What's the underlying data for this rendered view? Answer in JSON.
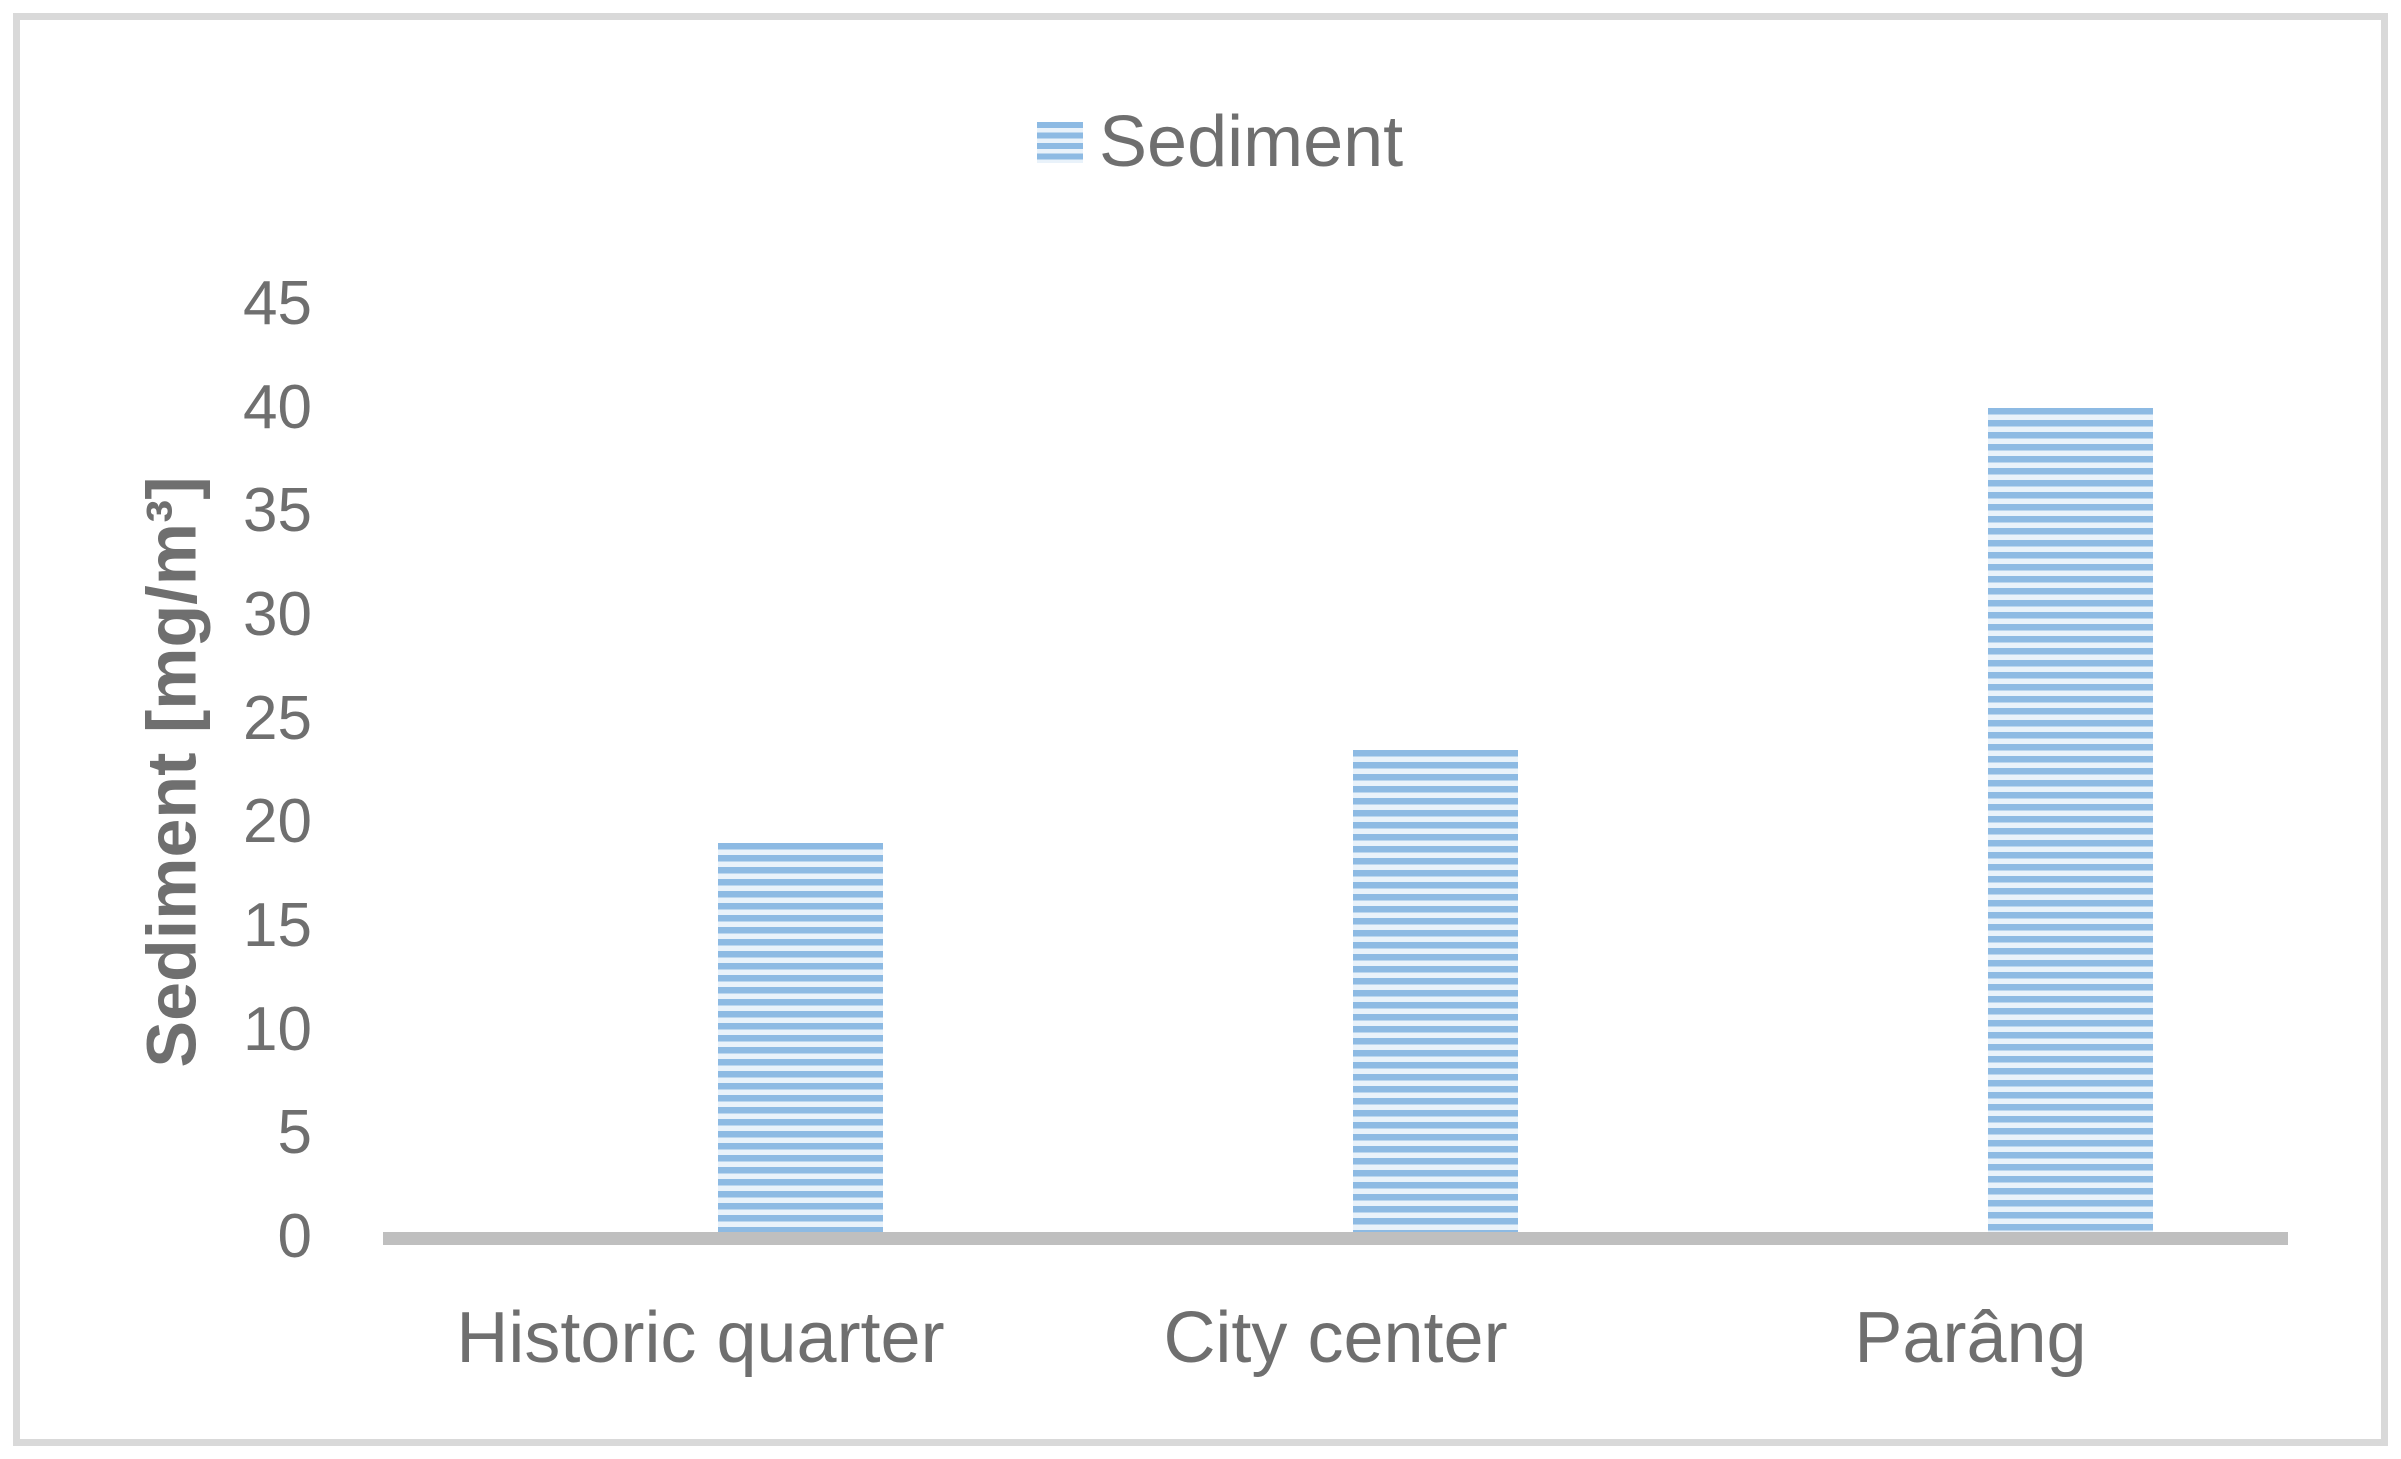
{
  "chart_data": {
    "type": "bar",
    "title": "",
    "categories": [
      "Historic quarter",
      "City center",
      "Parâng"
    ],
    "series": [
      {
        "name": "Sediment",
        "values": [
          19,
          23.5,
          40
        ]
      }
    ],
    "xlabel": "",
    "ylabel": "Sediment [mg/m³]",
    "ylim": [
      0,
      45
    ],
    "yticks": [
      0,
      5,
      10,
      15,
      20,
      25,
      30,
      35,
      40,
      45
    ],
    "grid": false,
    "legend_position": "top-center",
    "legend_label": "Sediment",
    "colors": {
      "bar_stripe": "#8DBAE3",
      "bar_stripe_gap": "#E9F2FA",
      "axis_line": "#BFBFBF",
      "text": "#6F6F6F",
      "frame_border": "#D9D9D9"
    }
  }
}
